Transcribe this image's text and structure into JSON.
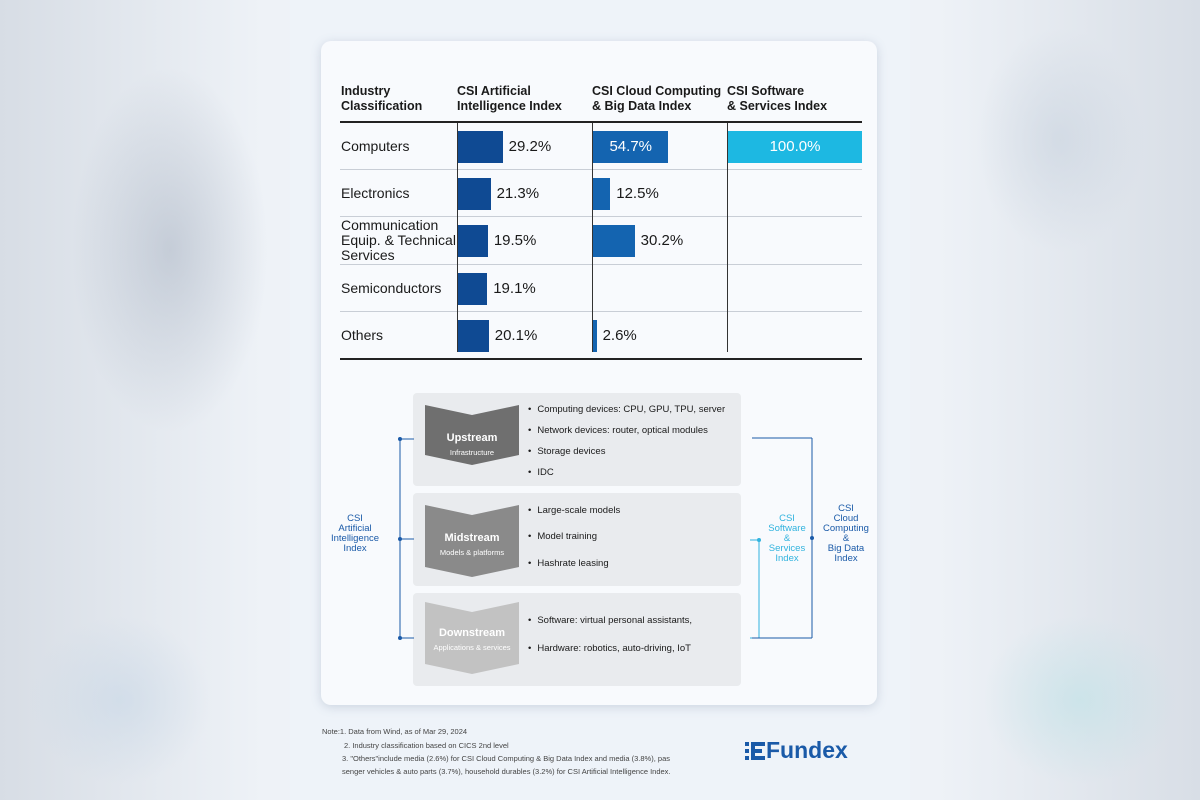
{
  "colors": {
    "ai_bar": "#0f4a93",
    "cloud_bar": "#1464b0",
    "software_bar": "#1db8e2",
    "stage_chevron": "#6f6f6f",
    "stage_chevron_light": "#bdbdbd",
    "ai_bracket": "#1a5aa8",
    "software_bracket": "#31b3de",
    "cloud_bracket": "#1a5aa8"
  },
  "table": {
    "headers": [
      "Industry\nClassification",
      "CSI Artificial\nIntelligence Index",
      "CSI Cloud Computing\n& Big Data Index",
      "CSI Software\n& Services Index"
    ]
  },
  "chart_data": {
    "type": "bar",
    "categories": [
      "Computers",
      "Electronics",
      "Communication\nEquip. & Technical\nServices",
      "Semiconductors",
      "Others"
    ],
    "series": [
      {
        "name": "CSI Artificial Intelligence Index",
        "values": [
          29.2,
          21.3,
          19.5,
          19.1,
          20.1
        ],
        "labels": [
          "29.2%",
          "21.3%",
          "19.5%",
          "19.1%",
          "20.1%"
        ]
      },
      {
        "name": "CSI Cloud Computing & Big Data Index",
        "values": [
          54.7,
          12.5,
          30.2,
          null,
          2.6
        ],
        "labels": [
          "54.7%",
          "12.5%",
          "30.2%",
          "",
          "2.6%"
        ]
      },
      {
        "name": "CSI Software & Services Index",
        "values": [
          100.0,
          null,
          null,
          null,
          null
        ],
        "labels": [
          "100.0%",
          "",
          "",
          "",
          ""
        ]
      }
    ],
    "unit": "%",
    "orientation": "horizontal"
  },
  "diagram": {
    "stages": [
      {
        "title": "Upstream",
        "subtitle": "Infrastructure",
        "bullets": [
          "Computing devices: CPU, GPU, TPU, server",
          "Network devices: router, optical modules",
          "Storage devices",
          "IDC"
        ]
      },
      {
        "title": "Midstream",
        "subtitle": "Models & platforms",
        "bullets": [
          "Large-scale models",
          "Model training",
          "Hashrate leasing"
        ]
      },
      {
        "title": "Downstream",
        "subtitle": "Applications & services",
        "bullets": [
          "Software: virtual personal assistants,",
          "Hardware: robotics, auto-driving, IoT"
        ]
      }
    ],
    "left_label": "CSI\nArtificial\nIntelligence\nIndex",
    "right_label_1": "CSI\nSoftware\n&\nServices\nIndex",
    "right_label_2": "CSI\nCloud\nComputing\n&\nBig Data\nIndex"
  },
  "notes": {
    "line1": "Note:1. Data from Wind, as of Mar 29, 2024",
    "line2": "2.  Industry classification based on CICS 2nd level",
    "line3": "3. \"Others\"include media (2.6%) for CSI Cloud Computing & Big Data Index and media (3.8%), pas",
    "line4": "senger vehicles & auto parts (3.7%), household durables (3.2%) for CSI Artificial Intelligence Index."
  },
  "brand": {
    "name": "Fundex",
    "logo_icon": "fundex-e-icon"
  }
}
